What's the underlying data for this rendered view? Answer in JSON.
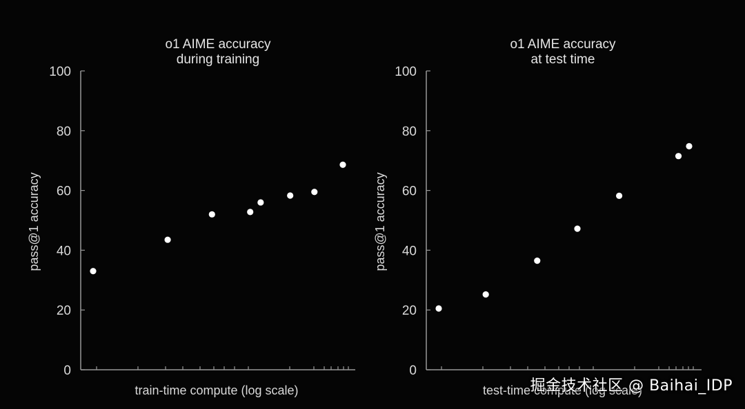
{
  "chart_data": [
    {
      "type": "scatter",
      "title_lines": [
        "o1 AIME accuracy",
        "during training"
      ],
      "xlabel": "train-time compute (log scale)",
      "ylabel": "pass@1 accuracy",
      "ylim": [
        0,
        100
      ],
      "yticks": [
        0,
        20,
        40,
        60,
        80,
        100
      ],
      "x_scale": "log",
      "x_ticks_labeled": false,
      "grid": false,
      "points": [
        {
          "x": 1.0,
          "y": 33
        },
        {
          "x": 1.79,
          "y": 43.5
        },
        {
          "x": 2.53,
          "y": 52
        },
        {
          "x": 3.41,
          "y": 52.8
        },
        {
          "x": 3.7,
          "y": 56
        },
        {
          "x": 4.66,
          "y": 58.3
        },
        {
          "x": 5.63,
          "y": 59.5
        },
        {
          "x": 7.03,
          "y": 68.6
        }
      ]
    },
    {
      "type": "scatter",
      "title_lines": [
        "o1 AIME accuracy",
        "at test time"
      ],
      "xlabel": "test-time compute (log scale)",
      "ylabel": "pass@1 accuracy",
      "ylim": [
        0,
        100
      ],
      "yticks": [
        0,
        20,
        40,
        60,
        80,
        100
      ],
      "x_scale": "log",
      "x_ticks_labeled": false,
      "grid": false,
      "points": [
        {
          "x": 1.0,
          "y": 20.5
        },
        {
          "x": 1.51,
          "y": 25.2
        },
        {
          "x": 2.37,
          "y": 36.5
        },
        {
          "x": 3.37,
          "y": 47.2
        },
        {
          "x": 4.86,
          "y": 58.2
        },
        {
          "x": 8.17,
          "y": 71.5
        },
        {
          "x": 8.97,
          "y": 74.8
        }
      ]
    }
  ],
  "watermark": "掘金技术社区 @ Baihai_IDP"
}
